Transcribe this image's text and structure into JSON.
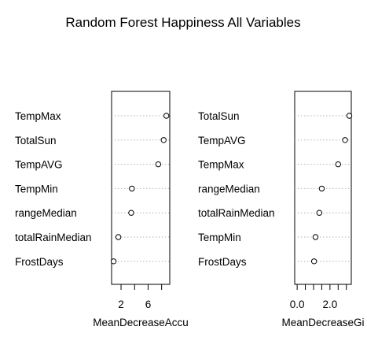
{
  "chart_data": {
    "type": "dotchart",
    "title": "Random Forest Happiness All Variables",
    "panels": [
      {
        "name": "accuracy",
        "xlabel": "MeanDecreaseAccu",
        "xlim": [
          0.6,
          9.2
        ],
        "xticks": [
          2,
          4,
          6,
          8
        ],
        "xtick_labels": [
          "2",
          "",
          "6",
          ""
        ],
        "categories": [
          "TempMax",
          "TotalSun",
          "TempAVG",
          "TempMin",
          "rangeMedian",
          "totalRainMedian",
          "FrostDays"
        ],
        "values": [
          8.7,
          8.3,
          7.5,
          3.6,
          3.5,
          1.6,
          0.9
        ]
      },
      {
        "name": "gini",
        "xlabel": "MeanDecreaseGi",
        "xlim": [
          -0.15,
          3.3
        ],
        "xticks": [
          0,
          0.5,
          1,
          1.5,
          2,
          2.5,
          3
        ],
        "xtick_labels": [
          "0.0",
          "",
          "",
          "",
          "2.0",
          "",
          ""
        ],
        "categories": [
          "TotalSun",
          "TempAVG",
          "TempMax",
          "rangeMedian",
          "totalRainMedian",
          "TempMin",
          "FrostDays"
        ],
        "values": [
          3.18,
          2.92,
          2.5,
          1.5,
          1.35,
          1.12,
          1.03
        ]
      }
    ]
  }
}
